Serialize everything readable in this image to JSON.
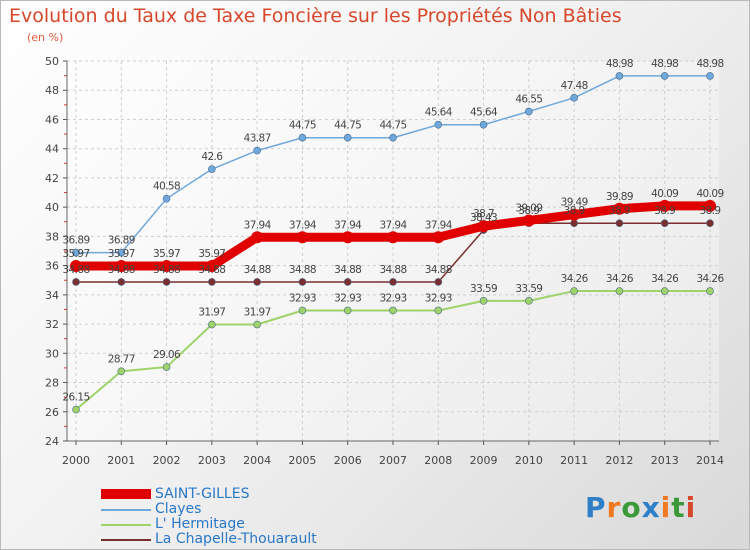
{
  "chart_data": {
    "type": "line",
    "title": "Evolution du Taux de Taxe Foncière sur les Propriétés Non Bâties",
    "subtitle": "(en %)",
    "x": [
      "2000",
      "2001",
      "2002",
      "2003",
      "2004",
      "2005",
      "2006",
      "2007",
      "2008",
      "2009",
      "2010",
      "2011",
      "2012",
      "2013",
      "2014"
    ],
    "ylim": [
      24,
      50
    ],
    "yticks": [
      24,
      26,
      28,
      30,
      32,
      34,
      36,
      38,
      40,
      42,
      44,
      46,
      48,
      50
    ],
    "grid": true,
    "legend_position": "bottom-left",
    "series": [
      {
        "name": "SAINT-GILLES",
        "color": "#e00000",
        "values": [
          35.97,
          35.97,
          35.97,
          35.97,
          37.94,
          37.94,
          37.94,
          37.94,
          37.94,
          38.7,
          39.09,
          39.49,
          39.89,
          40.09,
          40.09
        ],
        "labels": [
          "35.97",
          "35.97",
          "35.97",
          "35.97",
          "37.94",
          "37.94",
          "37.94",
          "37.94",
          "37.94",
          "38.7",
          "39.09",
          "39.49",
          "39.89",
          "40.09",
          "40.09"
        ]
      },
      {
        "name": "Clayes",
        "color": "#6fa8dc",
        "values": [
          36.89,
          36.89,
          40.58,
          42.6,
          43.87,
          44.75,
          44.75,
          44.75,
          45.64,
          45.64,
          46.55,
          47.48,
          48.98,
          48.98,
          48.98
        ],
        "labels": [
          "36.89",
          "36.89",
          "40.58",
          "42.6",
          "43.87",
          "44.75",
          "44.75",
          "44.75",
          "45.64",
          "45.64",
          "46.55",
          "47.48",
          "48.98",
          "48.98",
          "48.98"
        ]
      },
      {
        "name": "L' Hermitage",
        "color": "#9ed36a",
        "values": [
          26.15,
          28.77,
          29.06,
          31.97,
          31.97,
          32.93,
          32.93,
          32.93,
          32.93,
          33.59,
          33.59,
          34.26,
          34.26,
          34.26,
          34.26
        ],
        "labels": [
          "26.15",
          "28.77",
          "29.06",
          "31.97",
          "31.97",
          "32.93",
          "32.93",
          "32.93",
          "32.93",
          "33.59",
          "33.59",
          "34.26",
          "34.26",
          "34.26",
          "34.26"
        ]
      },
      {
        "name": "La Chapelle-Thouarault",
        "color": "#7a2e2e",
        "values": [
          34.88,
          34.88,
          34.88,
          34.88,
          34.88,
          34.88,
          34.88,
          34.88,
          34.88,
          38.43,
          38.9,
          38.9,
          38.9,
          38.9,
          38.9
        ],
        "labels": [
          "34.88",
          "34.88",
          "34.88",
          "34.88",
          "34.88",
          "34.88",
          "34.88",
          "34.88",
          "34.88",
          "38.43",
          "38.9",
          "38.9",
          "38.9",
          "38.9",
          "38.9"
        ]
      }
    ]
  },
  "logo": {
    "text": "Proxiti",
    "part1": "P",
    "part2": "r",
    "part3": "o",
    "part4": "x",
    "part5": "i",
    "part6": "t",
    "part7": "i"
  }
}
